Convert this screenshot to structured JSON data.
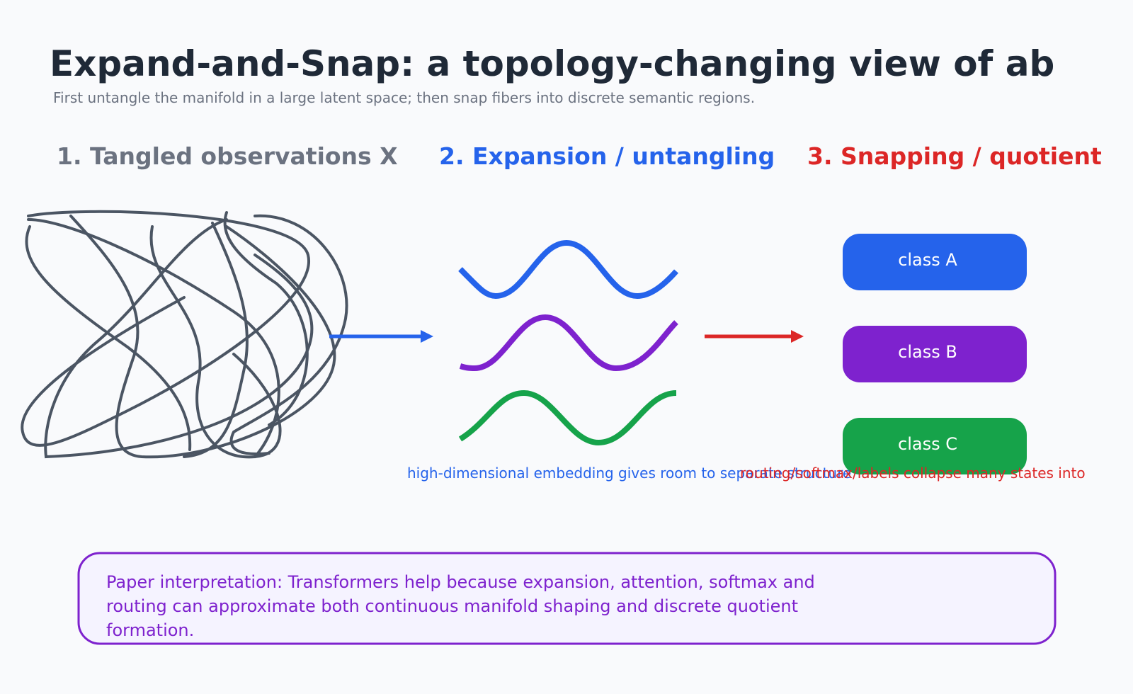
{
  "header": {
    "title": "Expand-and-Snap: a topology-changing view of ab",
    "subtitle": "First untangle the manifold in a large latent space; then snap fibers into discrete semantic regions."
  },
  "panels": [
    "1. Tangled observations X",
    "2. Expansion / untangling",
    "3. Snapping / quotient"
  ],
  "classes": [
    "class A",
    "class B",
    "class C"
  ],
  "captions": [
    "high-dimensional embedding gives room to separate structure",
    "routing/softmax/labels collapse many states into"
  ],
  "note": {
    "lines": [
      "Paper interpretation: Transformers help because expansion, attention, softmax and",
      "routing can approximate both continuous manifold shaping and discrete quotient",
      "formation."
    ]
  }
}
